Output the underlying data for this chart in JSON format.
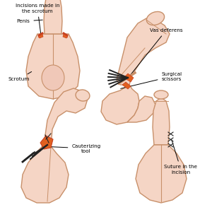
{
  "bg_color": "#ffffff",
  "skin_fill": "#f5d5c5",
  "skin_edge": "#c8906a",
  "skin_inner": "#f0c0b0",
  "red_color": "#c84020",
  "orange_color": "#e06020",
  "dark_color": "#222222",
  "gray_color": "#555555",
  "line_color": "#000000",
  "annot_fs": 5.2,
  "labels": {
    "tl1": "Incisions made in\nthe scrotum",
    "tl2": "Penis",
    "tl3": "Scrotum",
    "tr1": "Vas deferens",
    "tr2": "Surgical\nscissors",
    "bl1": "Cauterizing\ntool",
    "br1": "Suture in the\nincision"
  }
}
